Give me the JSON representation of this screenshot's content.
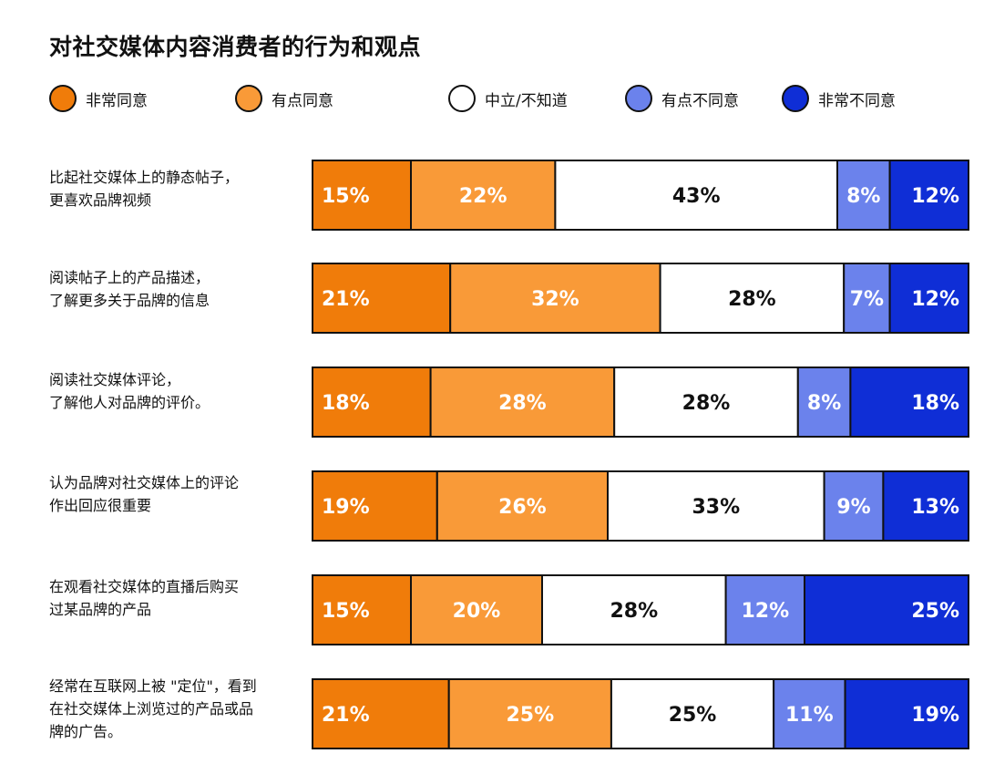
{
  "chart_data": {
    "type": "bar",
    "stacked": true,
    "orientation": "horizontal",
    "title": "对社交媒体内容消费者的行为和观点",
    "legend_position": "top",
    "categories": [
      "比起社交媒体上的静态帖子，\n更喜欢品牌视频",
      "阅读帖子上的产品描述，\n了解更多关于品牌的信息",
      "阅读社交媒体评论，\n了解他人对品牌的评价。",
      "认为品牌对社交媒体上的评论\n作出回应很重要",
      "在观看社交媒体的直播后购买\n过某品牌的产品",
      "经常在互联网上被 \"定位\"，看到\n在社交媒体上浏览过的产品或品\n牌的广告。"
    ],
    "series": [
      {
        "name": "非常同意",
        "color": "#F07C0A",
        "text_color": "#FFFFFF",
        "values": [
          15,
          21,
          18,
          19,
          15,
          21
        ]
      },
      {
        "name": "有点同意",
        "color": "#F99A38",
        "text_color": "#FFFFFF",
        "values": [
          22,
          32,
          28,
          26,
          20,
          25
        ]
      },
      {
        "name": "中立/不知道",
        "color": "#FFFFFF",
        "text_color": "#111111",
        "values": [
          43,
          28,
          28,
          33,
          28,
          25
        ]
      },
      {
        "name": "有点不同意",
        "color": "#6B82EC",
        "text_color": "#FFFFFF",
        "values": [
          8,
          7,
          8,
          9,
          12,
          11
        ]
      },
      {
        "name": "非常不同意",
        "color": "#0F2ED6",
        "text_color": "#FFFFFF",
        "values": [
          12,
          12,
          18,
          13,
          25,
          19
        ]
      }
    ],
    "value_suffix": "%",
    "grid": false
  }
}
